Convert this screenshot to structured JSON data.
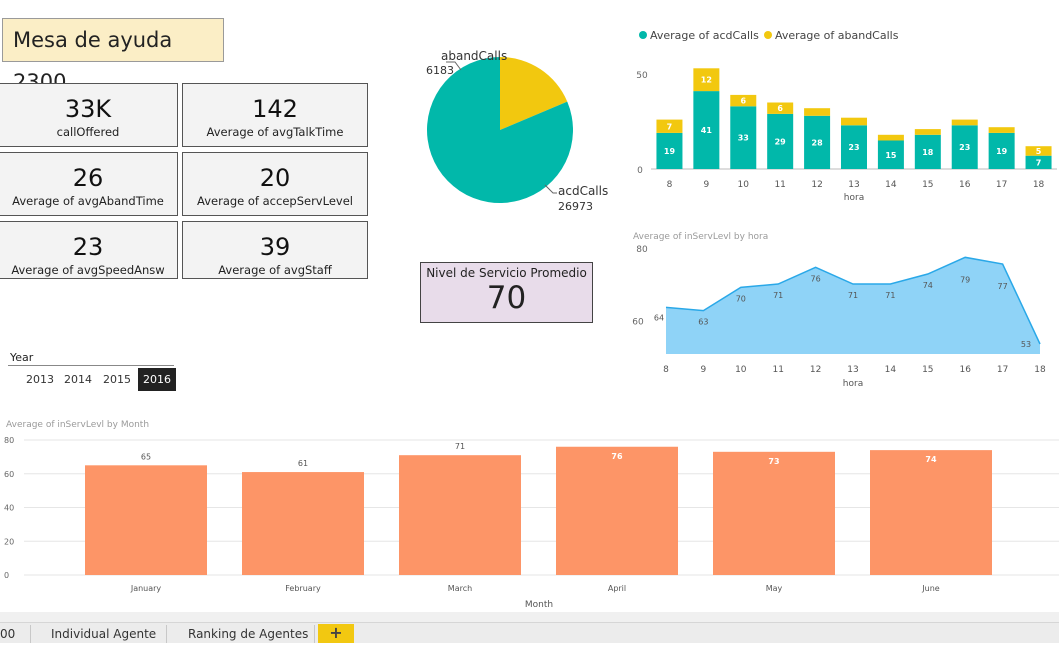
{
  "report_title": "Mesa de ayuda 2300",
  "cards": [
    {
      "value": "33K",
      "label": "callOffered"
    },
    {
      "value": "142",
      "label": "Average of avgTalkTime"
    },
    {
      "value": "26",
      "label": "Average of avgAbandTime"
    },
    {
      "value": "20",
      "label": "Average of accepServLevel"
    },
    {
      "value": "23",
      "label": "Average of avgSpeedAnsw"
    },
    {
      "value": "39",
      "label": "Average of avgStaff"
    }
  ],
  "kpi": {
    "label": "Nivel de Servicio Promedio",
    "value": "70"
  },
  "slicer": {
    "title": "Year",
    "options": [
      "2013",
      "2014",
      "2015",
      "2016"
    ],
    "selected": "2016"
  },
  "tabs": {
    "first_partial": "00",
    "items": [
      "Individual Agente",
      "Ranking de Agentes"
    ],
    "add_label": "+"
  },
  "colors": {
    "teal": "#01b8aa",
    "yellow": "#f2c80f",
    "blue_area": "#8fd3f7",
    "blue_line": "#2aa8e8",
    "orange": "#fd9567"
  },
  "chart_data": [
    {
      "type": "pie",
      "slices": [
        {
          "label": "abandCalls",
          "value": 6183
        },
        {
          "label": "acdCalls",
          "value": 26973
        }
      ]
    },
    {
      "type": "bar",
      "stacked": true,
      "legend": [
        "Average of acdCalls",
        "Average of abandCalls"
      ],
      "legend_position": "top",
      "xlabel": "hora",
      "categories": [
        "8",
        "9",
        "10",
        "11",
        "12",
        "13",
        "14",
        "15",
        "16",
        "17",
        "18"
      ],
      "series": [
        {
          "name": "Average of acdCalls",
          "values": [
            19,
            41,
            33,
            29,
            28,
            23,
            15,
            18,
            23,
            19,
            7
          ]
        },
        {
          "name": "Average of abandCalls",
          "values": [
            7,
            12,
            6,
            6,
            4,
            4,
            3,
            3,
            3,
            3,
            5
          ]
        }
      ],
      "data_labels": {
        "acd": [
          "19",
          "41",
          "33",
          "29",
          "28",
          "23",
          "15",
          "18",
          "23",
          "19",
          "7"
        ],
        "aband": [
          "7",
          "12",
          "6",
          "6",
          "",
          "",
          "",
          "",
          "",
          "",
          "5"
        ]
      },
      "yticks": [
        "0",
        "50"
      ],
      "ylim": [
        0,
        55
      ]
    },
    {
      "type": "area",
      "title": "Average of inServLevl by hora",
      "xlabel": "hora",
      "x": [
        "8",
        "9",
        "10",
        "11",
        "12",
        "13",
        "14",
        "15",
        "16",
        "17",
        "18"
      ],
      "values": [
        64,
        63,
        70,
        71,
        76,
        71,
        71,
        74,
        79,
        77,
        53
      ],
      "yticks": [
        "60",
        "80"
      ],
      "ylim": [
        50,
        80
      ]
    },
    {
      "type": "bar",
      "title": "Average of inServLevl by Month",
      "xlabel": "Month",
      "categories": [
        "January",
        "February",
        "March",
        "April",
        "May",
        "June"
      ],
      "values": [
        65,
        61,
        71,
        76,
        73,
        74
      ],
      "yticks": [
        "0",
        "20",
        "40",
        "60",
        "80"
      ],
      "ylim": [
        0,
        80
      ]
    }
  ]
}
